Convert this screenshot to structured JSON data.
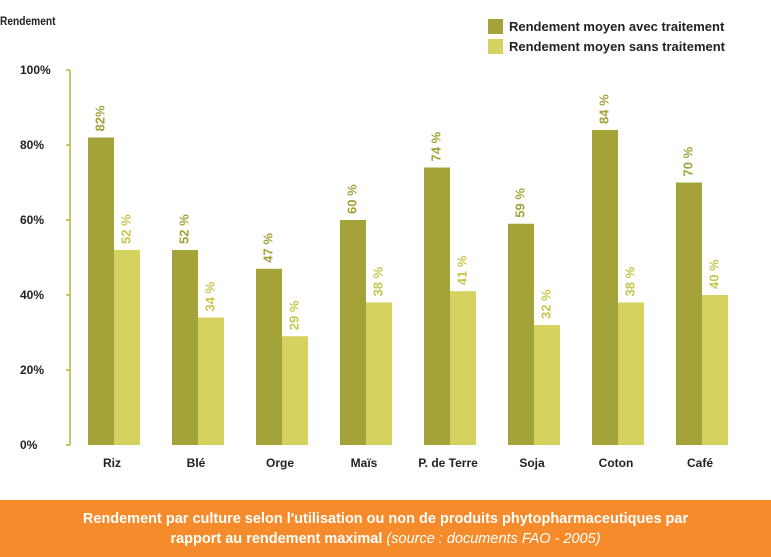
{
  "chart_data": {
    "type": "bar",
    "ylabel": "Rendement",
    "ylim": [
      0,
      100
    ],
    "yticks": [
      "0%",
      "20%",
      "40%",
      "60%",
      "80%",
      "100%"
    ],
    "categories": [
      "Riz",
      "Blé",
      "Orge",
      "Maïs",
      "P. de Terre",
      "Soja",
      "Coton",
      "Café"
    ],
    "series": [
      {
        "name": "Rendement moyen avec traitement",
        "color": "#a3a33a",
        "values": [
          82,
          52,
          47,
          60,
          74,
          59,
          84,
          70
        ],
        "labels": [
          "82%",
          "52 %",
          "47 %",
          "60 %",
          "74 %",
          "59 %",
          "84 %",
          "70 %"
        ]
      },
      {
        "name": "Rendement moyen sans traitement",
        "color": "#d6d260",
        "values": [
          52,
          34,
          29,
          38,
          41,
          32,
          38,
          40
        ],
        "labels": [
          "52 %",
          "34 %",
          "29 %",
          "38 %",
          "41 %",
          "32 %",
          "38 %",
          "40 %"
        ]
      }
    ],
    "legend_position": "top-right",
    "grid": false
  },
  "caption": {
    "line1": "Rendement par culture selon l'utilisation ou non de produits phytopharmaceutiques par",
    "line2": "rapport au rendement maximal",
    "source": "(source : documents FAO - 2005)"
  },
  "colors": {
    "banner": "#f68b2c",
    "axis": "#b5b540"
  }
}
